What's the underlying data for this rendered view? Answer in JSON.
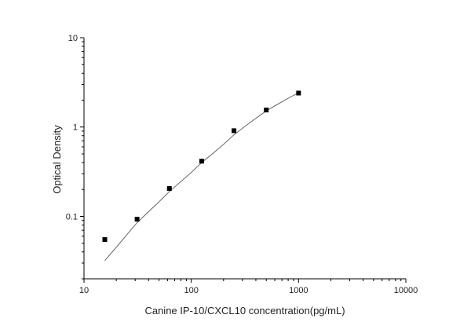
{
  "chart_data": {
    "type": "scatter",
    "title": "",
    "xlabel": "Canine IP-10/CXCL10 concentration(pg/mL)",
    "ylabel": "Optical Density",
    "x_scale": "log",
    "y_scale": "log",
    "xlim": [
      10,
      10000
    ],
    "ylim": [
      0.02,
      10
    ],
    "x_ticks": [
      10,
      100,
      1000,
      10000
    ],
    "x_tick_labels": [
      "10",
      "100",
      "1000",
      "10000"
    ],
    "y_ticks": [
      0.1,
      1,
      10
    ],
    "y_tick_labels": [
      "0.1",
      "1",
      "10"
    ],
    "grid": false,
    "legend": "none",
    "series": [
      {
        "kind": "points",
        "marker": "square",
        "color": "#000000",
        "x": [
          15.63,
          31.25,
          62.5,
          125,
          250,
          500,
          1000
        ],
        "y": [
          0.055,
          0.093,
          0.205,
          0.415,
          0.91,
          1.55,
          2.4
        ]
      },
      {
        "kind": "fitted-curve",
        "color": "#555555",
        "x": [
          15.63,
          20,
          25,
          31.25,
          40,
          50,
          62.5,
          80,
          100,
          125,
          160,
          200,
          250,
          320,
          400,
          500,
          640,
          800,
          1000
        ],
        "y": [
          0.032,
          0.045,
          0.062,
          0.085,
          0.113,
          0.145,
          0.19,
          0.245,
          0.31,
          0.4,
          0.51,
          0.64,
          0.82,
          1.03,
          1.25,
          1.52,
          1.8,
          2.1,
          2.42
        ]
      }
    ]
  }
}
